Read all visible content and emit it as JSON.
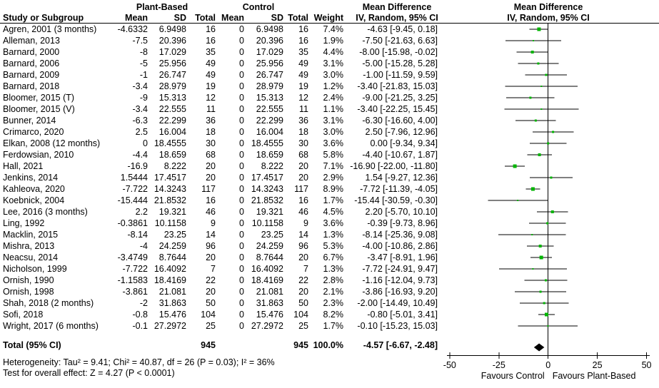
{
  "header": {
    "group_experimental": "Plant-Based",
    "group_control": "Control",
    "col_study": "Study or Subgroup",
    "col_mean": "Mean",
    "col_sd": "SD",
    "col_total": "Total",
    "col_weight": "Weight",
    "md_title": "Mean Difference",
    "md_method": "IV, Random, 95% CI"
  },
  "colors": {
    "marker_green": "#00b400",
    "line_black": "#000000",
    "diamond_black": "#000000"
  },
  "chart_data": {
    "type": "forest",
    "effect_measure": "Mean Difference",
    "model": "IV, Random, 95% CI",
    "x_axis": {
      "min": -50,
      "max": 50,
      "ticks": [
        -50,
        -25,
        0,
        25,
        50
      ],
      "favours_left": "Favours Control",
      "favours_right": "Favours Plant-Based"
    },
    "studies": [
      {
        "name": "Agren, 2001 (3 months)",
        "pb_mean": "-4.6332",
        "pb_sd": "6.9498",
        "pb_total": "16",
        "c_mean": "0",
        "c_sd": "6.9498",
        "c_total": "16",
        "weight": "7.4%",
        "ci": "-4.63 [-9.45, 0.18]",
        "md": -4.63,
        "lo": -9.45,
        "hi": 0.18,
        "w": 7.4
      },
      {
        "name": "Alleman, 2013",
        "pb_mean": "-7.5",
        "pb_sd": "20.396",
        "pb_total": "16",
        "c_mean": "0",
        "c_sd": "20.396",
        "c_total": "16",
        "weight": "1.9%",
        "ci": "-7.50 [-21.63, 6.63]",
        "md": -7.5,
        "lo": -21.63,
        "hi": 6.63,
        "w": 1.9
      },
      {
        "name": "Barnard, 2000",
        "pb_mean": "-8",
        "pb_sd": "17.029",
        "pb_total": "35",
        "c_mean": "0",
        "c_sd": "17.029",
        "c_total": "35",
        "weight": "4.4%",
        "ci": "-8.00 [-15.98, -0.02]",
        "md": -8,
        "lo": -15.98,
        "hi": -0.02,
        "w": 4.4
      },
      {
        "name": "Barnard, 2006",
        "pb_mean": "-5",
        "pb_sd": "25.956",
        "pb_total": "49",
        "c_mean": "0",
        "c_sd": "25.956",
        "c_total": "49",
        "weight": "3.1%",
        "ci": "-5.00 [-15.28, 5.28]",
        "md": -5,
        "lo": -15.28,
        "hi": 5.28,
        "w": 3.1
      },
      {
        "name": "Barnard, 2009",
        "pb_mean": "-1",
        "pb_sd": "26.747",
        "pb_total": "49",
        "c_mean": "0",
        "c_sd": "26.747",
        "c_total": "49",
        "weight": "3.0%",
        "ci": "-1.00 [-11.59, 9.59]",
        "md": -1,
        "lo": -11.59,
        "hi": 9.59,
        "w": 3.0
      },
      {
        "name": "Barnard, 2018",
        "pb_mean": "-3.4",
        "pb_sd": "28.979",
        "pb_total": "19",
        "c_mean": "0",
        "c_sd": "28.979",
        "c_total": "19",
        "weight": "1.2%",
        "ci": "-3.40 [-21.83, 15.03]",
        "md": -3.4,
        "lo": -21.83,
        "hi": 15.03,
        "w": 1.2
      },
      {
        "name": "Bloomer, 2015 (T)",
        "pb_mean": "-9",
        "pb_sd": "15.313",
        "pb_total": "12",
        "c_mean": "0",
        "c_sd": "15.313",
        "c_total": "12",
        "weight": "2.4%",
        "ci": "-9.00 [-21.25, 3.25]",
        "md": -9,
        "lo": -21.25,
        "hi": 3.25,
        "w": 2.4
      },
      {
        "name": "Bloomer, 2015 (V)",
        "pb_mean": "-3.4",
        "pb_sd": "22.555",
        "pb_total": "11",
        "c_mean": "0",
        "c_sd": "22.555",
        "c_total": "11",
        "weight": "1.1%",
        "ci": "-3.40 [-22.25, 15.45]",
        "md": -3.4,
        "lo": -22.25,
        "hi": 15.45,
        "w": 1.1
      },
      {
        "name": "Bunner, 2014",
        "pb_mean": "-6.3",
        "pb_sd": "22.299",
        "pb_total": "36",
        "c_mean": "0",
        "c_sd": "22.299",
        "c_total": "36",
        "weight": "3.1%",
        "ci": "-6.30 [-16.60, 4.00]",
        "md": -6.3,
        "lo": -16.6,
        "hi": 4.0,
        "w": 3.1
      },
      {
        "name": "Crimarco, 2020",
        "pb_mean": "2.5",
        "pb_sd": "16.004",
        "pb_total": "18",
        "c_mean": "0",
        "c_sd": "16.004",
        "c_total": "18",
        "weight": "3.0%",
        "ci": "2.50 [-7.96, 12.96]",
        "md": 2.5,
        "lo": -7.96,
        "hi": 12.96,
        "w": 3.0
      },
      {
        "name": "Elkan, 2008 (12 months)",
        "pb_mean": "0",
        "pb_sd": "18.4555",
        "pb_total": "30",
        "c_mean": "0",
        "c_sd": "18.4555",
        "c_total": "30",
        "weight": "3.6%",
        "ci": "0.00 [-9.34, 9.34]",
        "md": 0,
        "lo": -9.34,
        "hi": 9.34,
        "w": 3.6
      },
      {
        "name": "Ferdowsian, 2010",
        "pb_mean": "-4.4",
        "pb_sd": "18.659",
        "pb_total": "68",
        "c_mean": "0",
        "c_sd": "18.659",
        "c_total": "68",
        "weight": "5.8%",
        "ci": "-4.40 [-10.67, 1.87]",
        "md": -4.4,
        "lo": -10.67,
        "hi": 1.87,
        "w": 5.8
      },
      {
        "name": "Hall, 2021",
        "pb_mean": "-16.9",
        "pb_sd": "8.222",
        "pb_total": "20",
        "c_mean": "0",
        "c_sd": "8.222",
        "c_total": "20",
        "weight": "7.1%",
        "ci": "-16.90 [-22.00, -11.80]",
        "md": -16.9,
        "lo": -22.0,
        "hi": -11.8,
        "w": 7.1
      },
      {
        "name": "Jenkins, 2014",
        "pb_mean": "1.5444",
        "pb_sd": "17.4517",
        "pb_total": "20",
        "c_mean": "0",
        "c_sd": "17.4517",
        "c_total": "20",
        "weight": "2.9%",
        "ci": "1.54 [-9.27, 12.36]",
        "md": 1.54,
        "lo": -9.27,
        "hi": 12.36,
        "w": 2.9
      },
      {
        "name": "Kahleova, 2020",
        "pb_mean": "-7.722",
        "pb_sd": "14.3243",
        "pb_total": "117",
        "c_mean": "0",
        "c_sd": "14.3243",
        "c_total": "117",
        "weight": "8.9%",
        "ci": "-7.72 [-11.39, -4.05]",
        "md": -7.72,
        "lo": -11.39,
        "hi": -4.05,
        "w": 8.9
      },
      {
        "name": "Koebnick, 2004",
        "pb_mean": "-15.444",
        "pb_sd": "21.8532",
        "pb_total": "16",
        "c_mean": "0",
        "c_sd": "21.8532",
        "c_total": "16",
        "weight": "1.7%",
        "ci": "-15.44 [-30.59, -0.30]",
        "md": -15.44,
        "lo": -30.59,
        "hi": -0.3,
        "w": 1.7
      },
      {
        "name": "Lee, 2016 (3 months)",
        "pb_mean": "2.2",
        "pb_sd": "19.321",
        "pb_total": "46",
        "c_mean": "0",
        "c_sd": "19.321",
        "c_total": "46",
        "weight": "4.5%",
        "ci": "2.20 [-5.70, 10.10]",
        "md": 2.2,
        "lo": -5.7,
        "hi": 10.1,
        "w": 4.5
      },
      {
        "name": "Ling, 1992",
        "pb_mean": "-0.3861",
        "pb_sd": "10.1158",
        "pb_total": "9",
        "c_mean": "0",
        "c_sd": "10.1158",
        "c_total": "9",
        "weight": "3.6%",
        "ci": "-0.39 [-9.73, 8.96]",
        "md": -0.39,
        "lo": -9.73,
        "hi": 8.96,
        "w": 3.6
      },
      {
        "name": "Macklin, 2015",
        "pb_mean": "-8.14",
        "pb_sd": "23.25",
        "pb_total": "14",
        "c_mean": "0",
        "c_sd": "23.25",
        "c_total": "14",
        "weight": "1.3%",
        "ci": "-8.14 [-25.36, 9.08]",
        "md": -8.14,
        "lo": -25.36,
        "hi": 9.08,
        "w": 1.3
      },
      {
        "name": "Mishra, 2013",
        "pb_mean": "-4",
        "pb_sd": "24.259",
        "pb_total": "96",
        "c_mean": "0",
        "c_sd": "24.259",
        "c_total": "96",
        "weight": "5.3%",
        "ci": "-4.00 [-10.86, 2.86]",
        "md": -4,
        "lo": -10.86,
        "hi": 2.86,
        "w": 5.3
      },
      {
        "name": "Neacsu, 2014",
        "pb_mean": "-3.4749",
        "pb_sd": "8.7644",
        "pb_total": "20",
        "c_mean": "0",
        "c_sd": "8.7644",
        "c_total": "20",
        "weight": "6.7%",
        "ci": "-3.47 [-8.91, 1.96]",
        "md": -3.47,
        "lo": -8.91,
        "hi": 1.96,
        "w": 6.7
      },
      {
        "name": "Nicholson, 1999",
        "pb_mean": "-7.722",
        "pb_sd": "16.4092",
        "pb_total": "7",
        "c_mean": "0",
        "c_sd": "16.4092",
        "c_total": "7",
        "weight": "1.3%",
        "ci": "-7.72 [-24.91, 9.47]",
        "md": -7.72,
        "lo": -24.91,
        "hi": 9.47,
        "w": 1.3
      },
      {
        "name": "Ornish, 1990",
        "pb_mean": "-1.1583",
        "pb_sd": "18.4169",
        "pb_total": "22",
        "c_mean": "0",
        "c_sd": "18.4169",
        "c_total": "22",
        "weight": "2.8%",
        "ci": "-1.16 [-12.04, 9.73]",
        "md": -1.16,
        "lo": -12.04,
        "hi": 9.73,
        "w": 2.8
      },
      {
        "name": "Ornish, 1998",
        "pb_mean": "-3.861",
        "pb_sd": "21.081",
        "pb_total": "20",
        "c_mean": "0",
        "c_sd": "21.081",
        "c_total": "20",
        "weight": "2.1%",
        "ci": "-3.86 [-16.93, 9.20]",
        "md": -3.86,
        "lo": -16.93,
        "hi": 9.2,
        "w": 2.1
      },
      {
        "name": "Shah, 2018 (2 months)",
        "pb_mean": "-2",
        "pb_sd": "31.863",
        "pb_total": "50",
        "c_mean": "0",
        "c_sd": "31.863",
        "c_total": "50",
        "weight": "2.3%",
        "ci": "-2.00 [-14.49, 10.49]",
        "md": -2,
        "lo": -14.49,
        "hi": 10.49,
        "w": 2.3
      },
      {
        "name": "Sofi, 2018",
        "pb_mean": "-0.8",
        "pb_sd": "15.476",
        "pb_total": "104",
        "c_mean": "0",
        "c_sd": "15.476",
        "c_total": "104",
        "weight": "8.2%",
        "ci": "-0.80 [-5.01, 3.41]",
        "md": -0.8,
        "lo": -5.01,
        "hi": 3.41,
        "w": 8.2
      },
      {
        "name": "Wright, 2017 (6 months)",
        "pb_mean": "-0.1",
        "pb_sd": "27.2972",
        "pb_total": "25",
        "c_mean": "0",
        "c_sd": "27.2972",
        "c_total": "25",
        "weight": "1.7%",
        "ci": "-0.10 [-15.23, 15.03]",
        "md": -0.1,
        "lo": -15.23,
        "hi": 15.03,
        "w": 1.7
      }
    ],
    "total": {
      "label": "Total (95% CI)",
      "pb_total": "945",
      "c_total": "945",
      "weight": "100.0%",
      "ci": "-4.57 [-6.67, -2.48]",
      "md": -4.57,
      "lo": -6.67,
      "hi": -2.48
    },
    "footnotes": {
      "heterogeneity": "Heterogeneity: Tau² = 9.41; Chi² = 40.87, df = 26 (P = 0.03); I² = 36%",
      "overall": "Test for overall effect: Z = 4.27 (P < 0.0001)"
    }
  }
}
